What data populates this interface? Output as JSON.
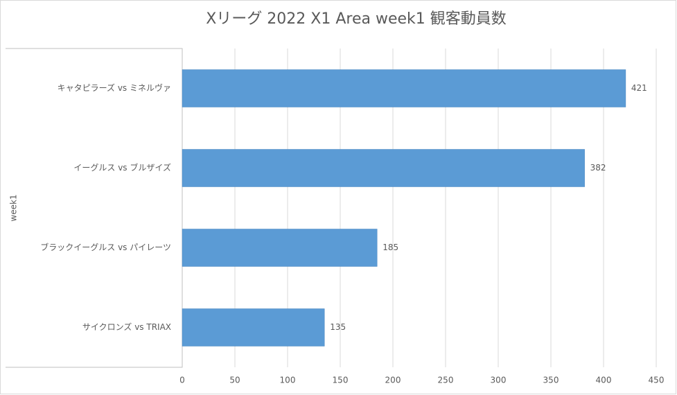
{
  "chart_data": {
    "type": "bar",
    "orientation": "horizontal",
    "title": "Xリーグ 2022 X1 Area week1 観客動員数",
    "group_label": "week1",
    "categories": [
      "キャタピラーズ vs ミネルヴァ",
      "イーグルス vs ブルザイズ",
      "ブラックイーグルス vs パイレーツ",
      "サイクロンズ vs TRIAX"
    ],
    "values": [
      421,
      382,
      185,
      135
    ],
    "color": "#5b9bd5",
    "xlim": [
      0,
      450
    ],
    "xticks": [
      0,
      50,
      100,
      150,
      200,
      250,
      300,
      350,
      400,
      450
    ],
    "grid": true,
    "data_labels": true
  }
}
